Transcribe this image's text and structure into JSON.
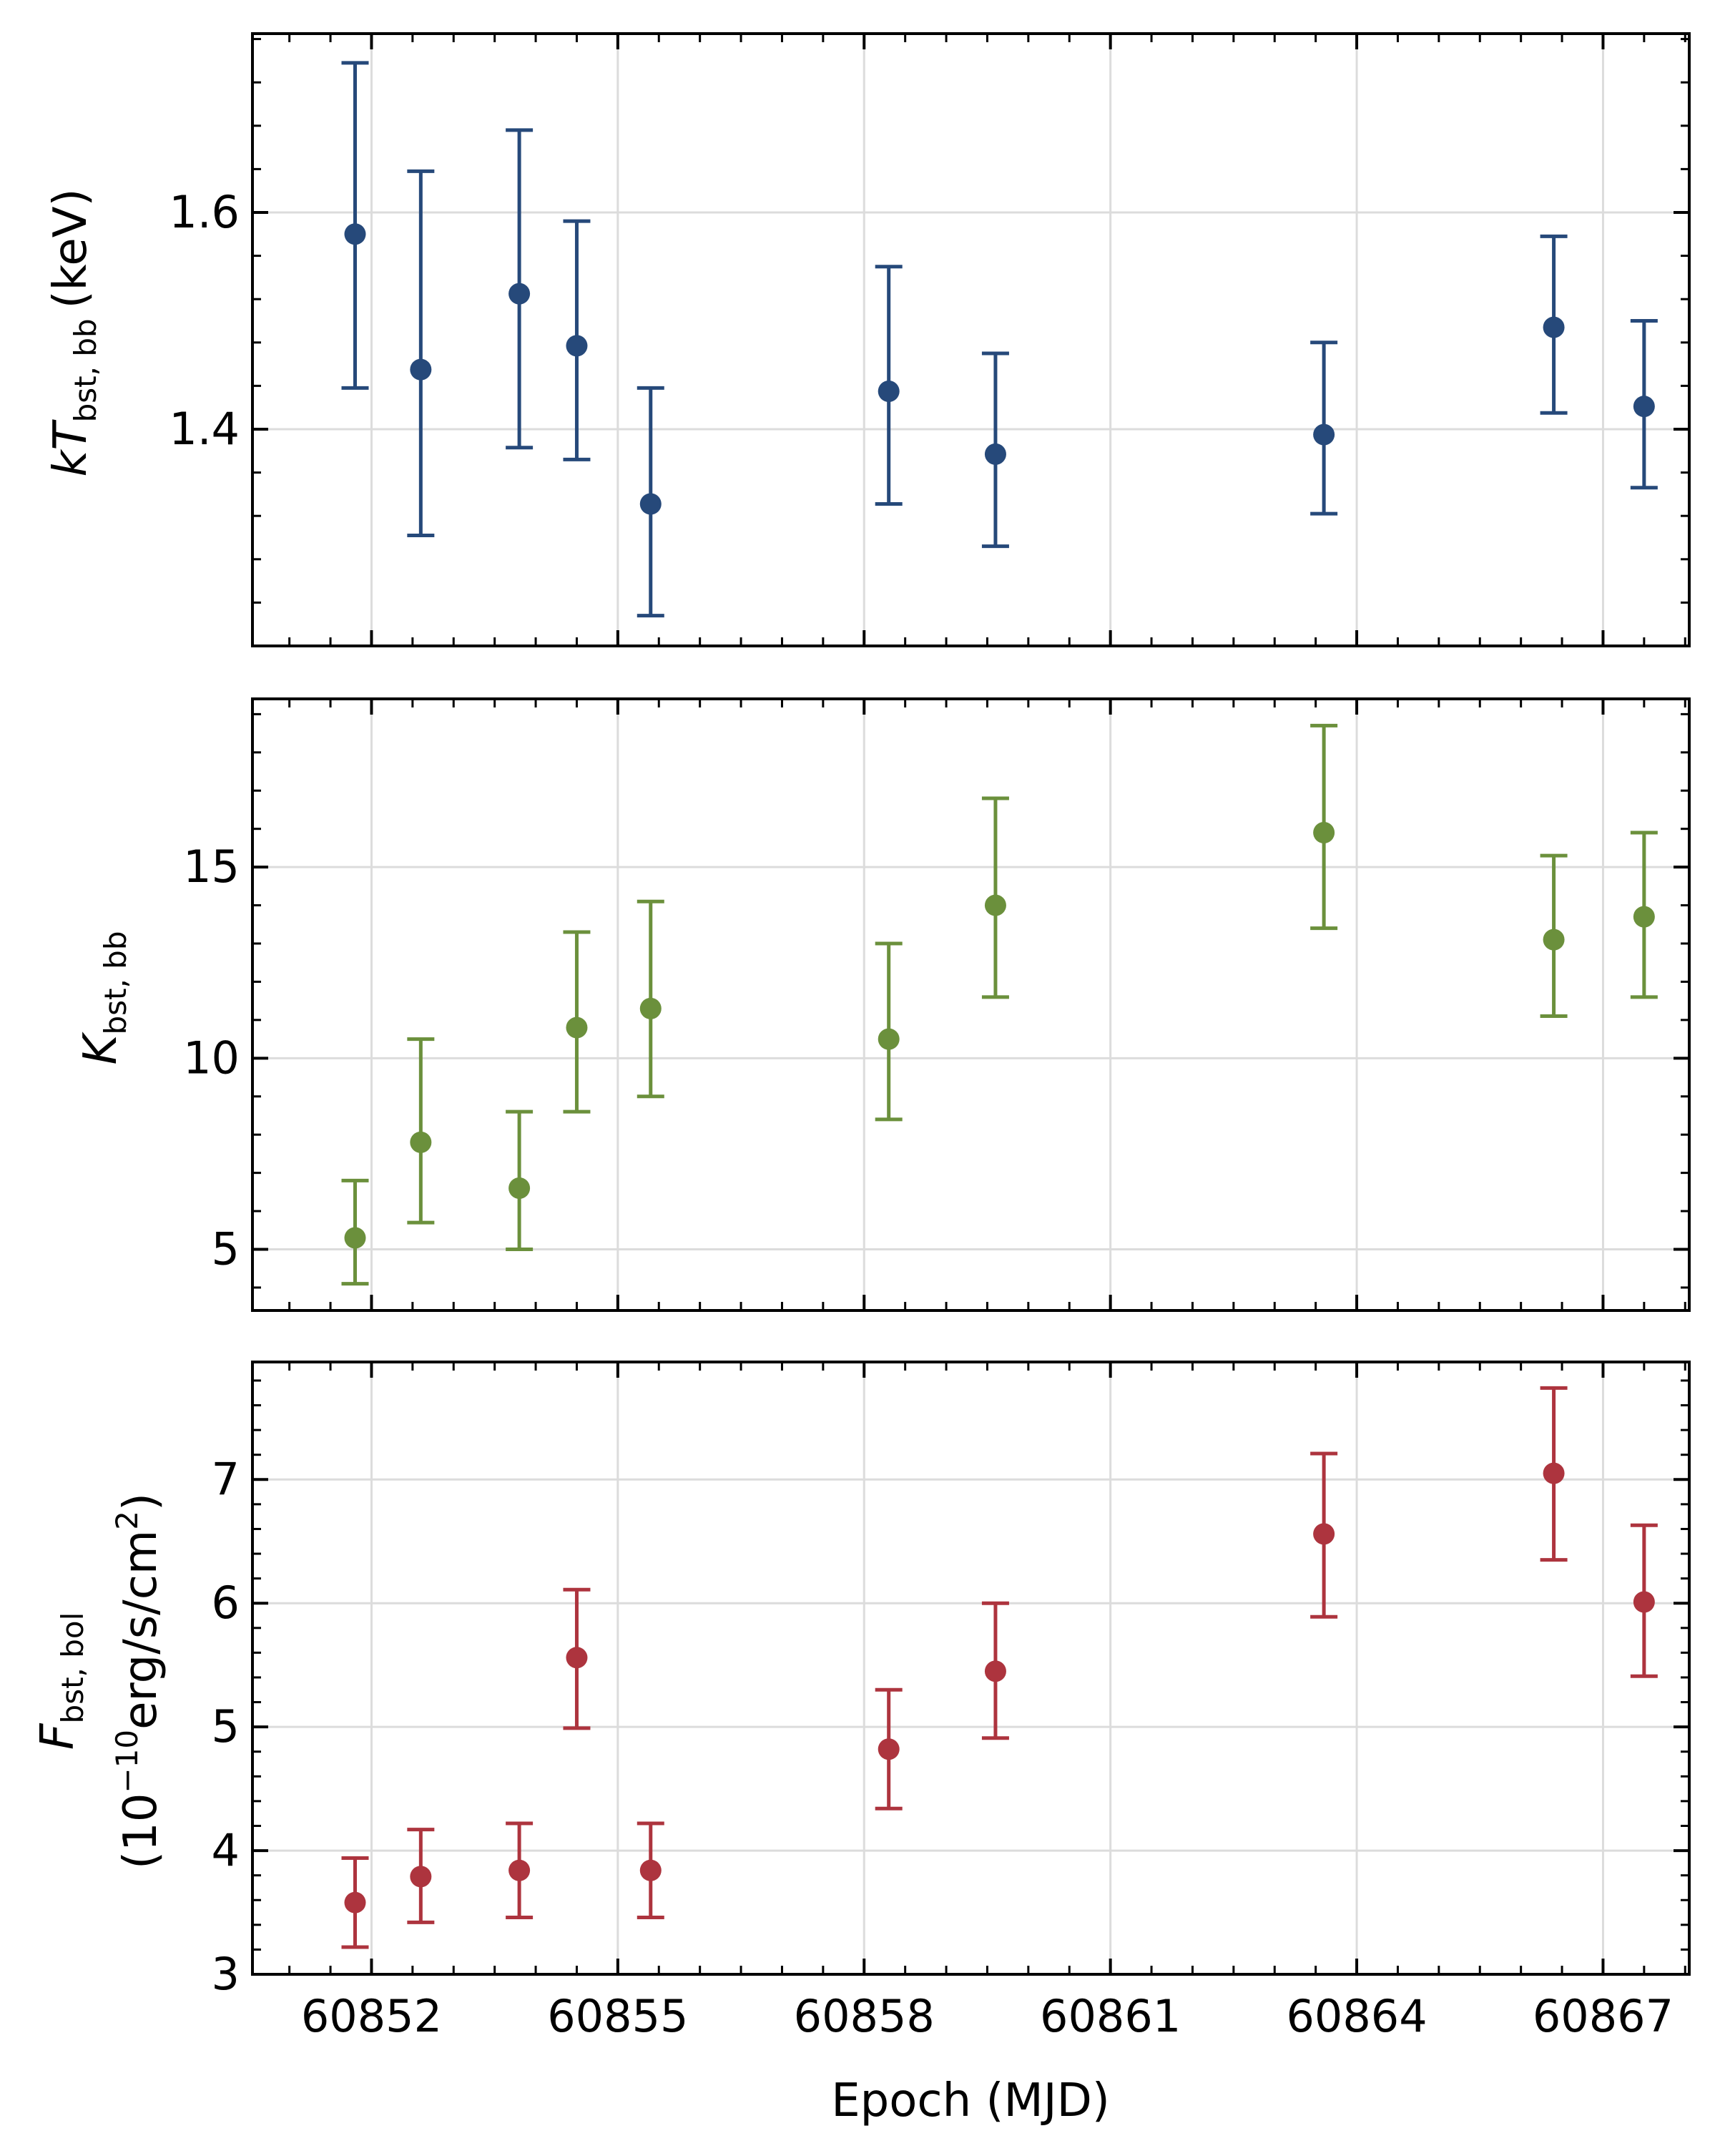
{
  "chart_data": [
    {
      "type": "scatter",
      "panel": "top",
      "ylabel": {
        "main": "kT",
        "sub": "bst, bb",
        "unit": "(keV)"
      },
      "color": "#26497a",
      "xlim": [
        60850.55,
        60868.05
      ],
      "ylim": [
        1.2,
        1.765
      ],
      "yticks": [
        1.4,
        1.6
      ],
      "ytick_labels": [
        "1.4",
        "1.6"
      ],
      "x": [
        60851.8,
        60852.6,
        60853.8,
        60854.5,
        60855.4,
        60858.3,
        60859.6,
        60863.6,
        60866.4,
        60867.5
      ],
      "y": [
        1.58,
        1.455,
        1.525,
        1.477,
        1.331,
        1.435,
        1.377,
        1.395,
        1.494,
        1.421
      ],
      "y_err_low": [
        1.438,
        1.302,
        1.383,
        1.372,
        1.228,
        1.331,
        1.292,
        1.322,
        1.415,
        1.346
      ],
      "y_err_high": [
        1.738,
        1.638,
        1.676,
        1.592,
        1.438,
        1.55,
        1.47,
        1.48,
        1.578,
        1.5
      ]
    },
    {
      "type": "scatter",
      "panel": "middle",
      "ylabel": {
        "main": "K",
        "sub": "bst, bb",
        "unit": ""
      },
      "color": "#6b903c",
      "xlim": [
        60850.55,
        60868.05
      ],
      "ylim": [
        3.4,
        19.4
      ],
      "yticks": [
        5,
        10,
        15
      ],
      "ytick_labels": [
        "5",
        "10",
        "15"
      ],
      "x": [
        60851.8,
        60852.6,
        60853.8,
        60854.5,
        60855.4,
        60858.3,
        60859.6,
        60863.6,
        60866.4,
        60867.5
      ],
      "y": [
        5.3,
        7.8,
        6.6,
        10.8,
        11.3,
        10.5,
        14.0,
        15.9,
        13.1,
        13.7
      ],
      "y_err_low": [
        4.1,
        5.7,
        5.0,
        8.6,
        9.0,
        8.4,
        11.6,
        13.4,
        11.1,
        11.6
      ],
      "y_err_high": [
        6.8,
        10.5,
        8.6,
        13.3,
        14.1,
        13.0,
        16.8,
        18.7,
        15.3,
        15.9
      ]
    },
    {
      "type": "scatter",
      "panel": "bottom",
      "ylabel": {
        "main": "F",
        "sub": "bst, bol",
        "unit_line2_pre": "(10",
        "unit_line2_exp": "−10",
        "unit_line2_mid": "erg/s/cm",
        "unit_line2_exp2": "2",
        "unit_line2_post": ")"
      },
      "color": "#ad343e",
      "xlim": [
        60850.55,
        60868.05
      ],
      "ylim": [
        3.0,
        7.95
      ],
      "yticks": [
        3,
        4,
        5,
        6,
        7
      ],
      "ytick_labels": [
        "3",
        "4",
        "5",
        "6",
        "7"
      ],
      "x": [
        60851.8,
        60852.6,
        60853.8,
        60854.5,
        60855.4,
        60858.3,
        60859.6,
        60863.6,
        60866.4,
        60867.5
      ],
      "y": [
        3.58,
        3.79,
        3.84,
        5.56,
        3.84,
        4.82,
        5.45,
        6.56,
        7.05,
        6.01
      ],
      "y_err_low": [
        3.22,
        3.42,
        3.46,
        4.99,
        3.46,
        4.34,
        4.91,
        5.89,
        6.35,
        5.41
      ],
      "y_err_high": [
        3.94,
        4.17,
        4.22,
        6.11,
        4.22,
        5.3,
        6.0,
        7.21,
        7.74,
        6.63
      ]
    }
  ],
  "x_axis": {
    "label": "Epoch (MJD)",
    "ticks": [
      60852,
      60855,
      60858,
      60861,
      60864,
      60867
    ],
    "tick_labels": [
      "60852",
      "60855",
      "60858",
      "60861",
      "60864",
      "60867"
    ]
  }
}
